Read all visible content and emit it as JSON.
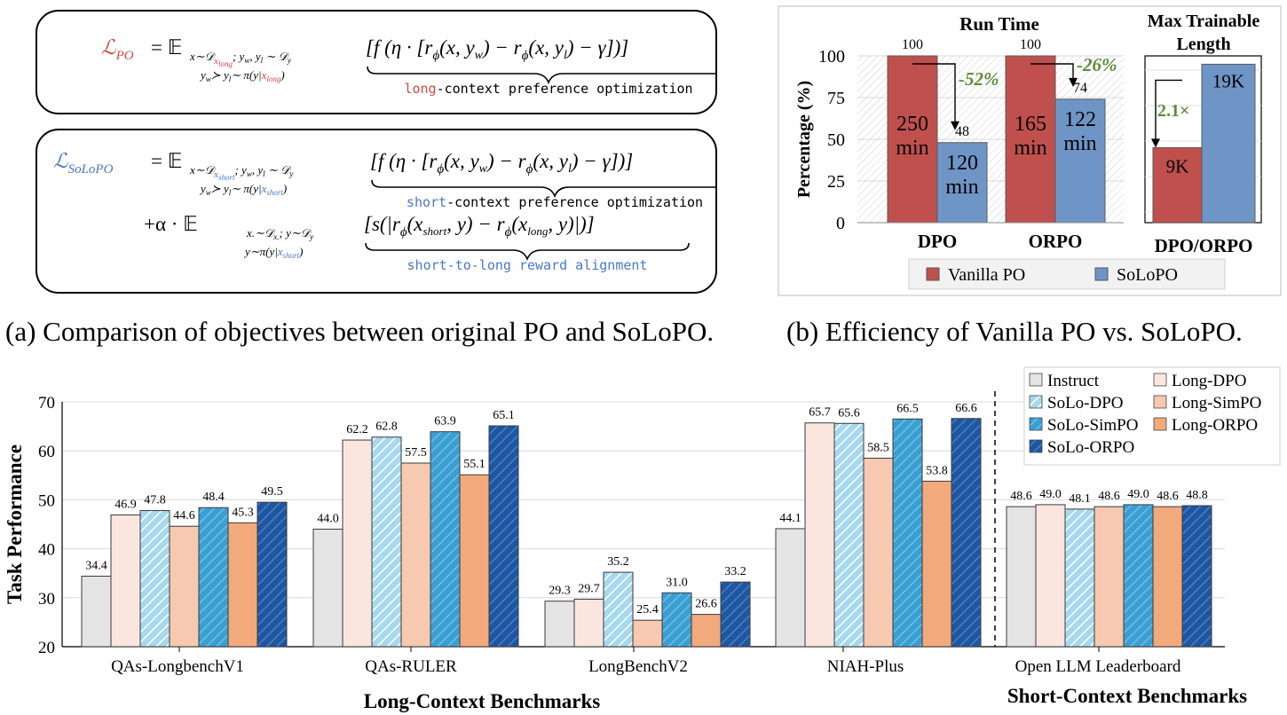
{
  "panel_a": {
    "caption": "(a) Comparison of objectives between original PO and SoLoPO.",
    "po": {
      "lhs": "ℒ",
      "lhs_sub": "PO",
      "expect": "= 𝔼",
      "expect_sub": "x∼𝒟",
      "expect_sub2": "x",
      "expect_sub3": "long",
      "expect_sub4": "; y",
      "expect_sub5": "w",
      "expect_sub6": ", y",
      "expect_sub7": "l",
      "expect_sub8": " ∼ 𝒟",
      "expect_sub9": "y",
      "cond": "y",
      "cond2": "w",
      "cond3": "≻ y",
      "cond4": "l",
      "cond5": "∼ π(y|",
      "cond6": "x",
      "cond7": "long",
      "cond8": ")",
      "body": "[f (η · [r",
      "phi": "ϕ",
      "body2": "(x, y",
      "bw": "w",
      "body3": ") − r",
      "body4": "(x, y",
      "bl": "l",
      "body5": ") − γ])]",
      "brace_prefix": "long",
      "brace_rest": "-context preference optimization"
    },
    "solopo": {
      "lhs": "ℒ",
      "lhs_sub": "SoLoPO",
      "expect": "= 𝔼",
      "expect_sub": "x∼𝒟",
      "expect_sub2": "x",
      "expect_sub3": "short",
      "expect_sub4": "; y",
      "expect_sub5": "w",
      "expect_sub6": ", y",
      "expect_sub7": "l",
      "expect_sub8": " ∼ 𝒟",
      "expect_sub9": "y",
      "cond": "y",
      "cond2": "w",
      "cond3": "≻ y",
      "cond4": "l",
      "cond5": "∼ π(y|",
      "cond6": "x",
      "cond7": "short",
      "cond8": ")",
      "body": "[f (η · [r",
      "phi": "ϕ",
      "body2": "(x, y",
      "bw": "w",
      "body3": ") − r",
      "body4": "(x, y",
      "bl": "l",
      "body5": ") − γ])]",
      "brace_prefix": "short",
      "brace_rest": "-context preference optimization",
      "term2_prefix": "+α · 𝔼",
      "term2_sub": "x.∼𝒟",
      "term2_sub2": "x.",
      "term2_sub3": "; y∼𝒟",
      "term2_sub4": "y",
      "term2_cond": "y∼π(y|",
      "term2_cond2": "x",
      "term2_cond3": "short",
      "term2_cond4": ")",
      "term2_body": "[s(|r",
      "term2_phi": "ϕ",
      "term2_body2": "(x",
      "term2_xs": "short",
      "term2_body3": ", y) − r",
      "term2_body4": "(x",
      "term2_xl": "long",
      "term2_body5": ", y)|)]",
      "brace2": "short-to-long reward alignment"
    }
  },
  "panel_b": {
    "caption": "(b) Efficiency of Vanilla PO vs. SoLoPO.",
    "colors": {
      "vanilla": "#c0504d",
      "solopo": "#6f95c6",
      "annotation": "#5f8c3a"
    },
    "chart_data": [
      {
        "type": "bar",
        "title": "Run Time",
        "ylabel": "Percentage (%)",
        "ylim": [
          0,
          100
        ],
        "yticks": [
          "0",
          "25",
          "50",
          "75",
          "100"
        ],
        "categories": [
          "DPO",
          "ORPO"
        ],
        "series": [
          {
            "name": "Vanilla PO",
            "values": [
              100,
              100
            ],
            "top_labels": [
              "100",
              "100"
            ],
            "inner_lines": [
              [
                "250",
                "min"
              ],
              [
                "165",
                "min"
              ]
            ]
          },
          {
            "name": "SoLoPO",
            "values": [
              48,
              74
            ],
            "top_labels": [
              "48",
              "74"
            ],
            "inner_lines": [
              [
                "120",
                "min"
              ],
              [
                "122",
                "min"
              ]
            ]
          }
        ],
        "annotations": [
          "-52%",
          "-26%"
        ]
      },
      {
        "type": "bar",
        "title_lines": [
          "Max Trainable",
          "Length"
        ],
        "categories": [
          "DPO/ORPO"
        ],
        "series": [
          {
            "name": "Vanilla PO",
            "values": [
              9
            ],
            "inner": "9K"
          },
          {
            "name": "SoLoPO",
            "values": [
              19
            ],
            "inner": "19K"
          }
        ],
        "annotations": [
          "2.1×"
        ]
      }
    ],
    "legend": [
      "Vanilla PO",
      "SoLoPO"
    ]
  },
  "panel_c": {
    "chart_data": {
      "type": "bar",
      "ylabel": "Task Performance",
      "ylim": [
        20,
        70
      ],
      "yticks": [
        "20",
        "30",
        "40",
        "50",
        "60",
        "70"
      ],
      "categories": [
        "QAs-LongbenchV1",
        "QAs-RULER",
        "LongBenchV2",
        "NIAH-Plus",
        "Open LLM Leaderboard"
      ],
      "group_labels": [
        "Long-Context Benchmarks",
        "Short-Context Benchmarks"
      ],
      "series": [
        {
          "name": "Instruct",
          "color": "#e4e4e4",
          "pattern": "",
          "values": [
            34.4,
            44.0,
            29.3,
            44.1,
            48.6
          ],
          "labels": [
            "34.4",
            "44.0",
            "29.3",
            "44.1",
            "48.6"
          ]
        },
        {
          "name": "Long-DPO",
          "color": "#fbe6df",
          "pattern": "",
          "values": [
            46.9,
            62.2,
            29.7,
            65.7,
            49.0
          ],
          "labels": [
            "46.9",
            "62.2",
            "29.7",
            "65.7",
            "49.0"
          ]
        },
        {
          "name": "SoLo-DPO",
          "color": "#9fd6ee",
          "pattern": "hatch-light",
          "values": [
            47.8,
            62.8,
            35.2,
            65.6,
            48.1
          ],
          "labels": [
            "47.8",
            "62.8",
            "35.2",
            "65.6",
            "48.1"
          ]
        },
        {
          "name": "Long-SimPO",
          "color": "#f6c9b0",
          "pattern": "",
          "values": [
            44.6,
            57.5,
            25.4,
            58.5,
            48.6
          ],
          "labels": [
            "44.6",
            "57.5",
            "25.4",
            "58.5",
            "48.6"
          ]
        },
        {
          "name": "SoLo-SimPO",
          "color": "#3da0d1",
          "pattern": "hatch-mid",
          "values": [
            48.4,
            63.9,
            31.0,
            66.5,
            49.0
          ],
          "labels": [
            "48.4",
            "63.9",
            "31.0",
            "66.5",
            "49.0"
          ]
        },
        {
          "name": "Long-ORPO",
          "color": "#f2a97c",
          "pattern": "",
          "values": [
            45.3,
            55.1,
            26.6,
            53.8,
            48.6
          ],
          "labels": [
            "45.3",
            "55.1",
            "26.6",
            "53.8",
            "48.6"
          ]
        },
        {
          "name": "SoLo-ORPO",
          "color": "#1f57a3",
          "pattern": "hatch-dark",
          "values": [
            49.5,
            65.1,
            33.2,
            66.6,
            48.8
          ],
          "labels": [
            "49.5",
            "65.1",
            "33.2",
            "66.6",
            "48.8"
          ]
        }
      ]
    }
  }
}
